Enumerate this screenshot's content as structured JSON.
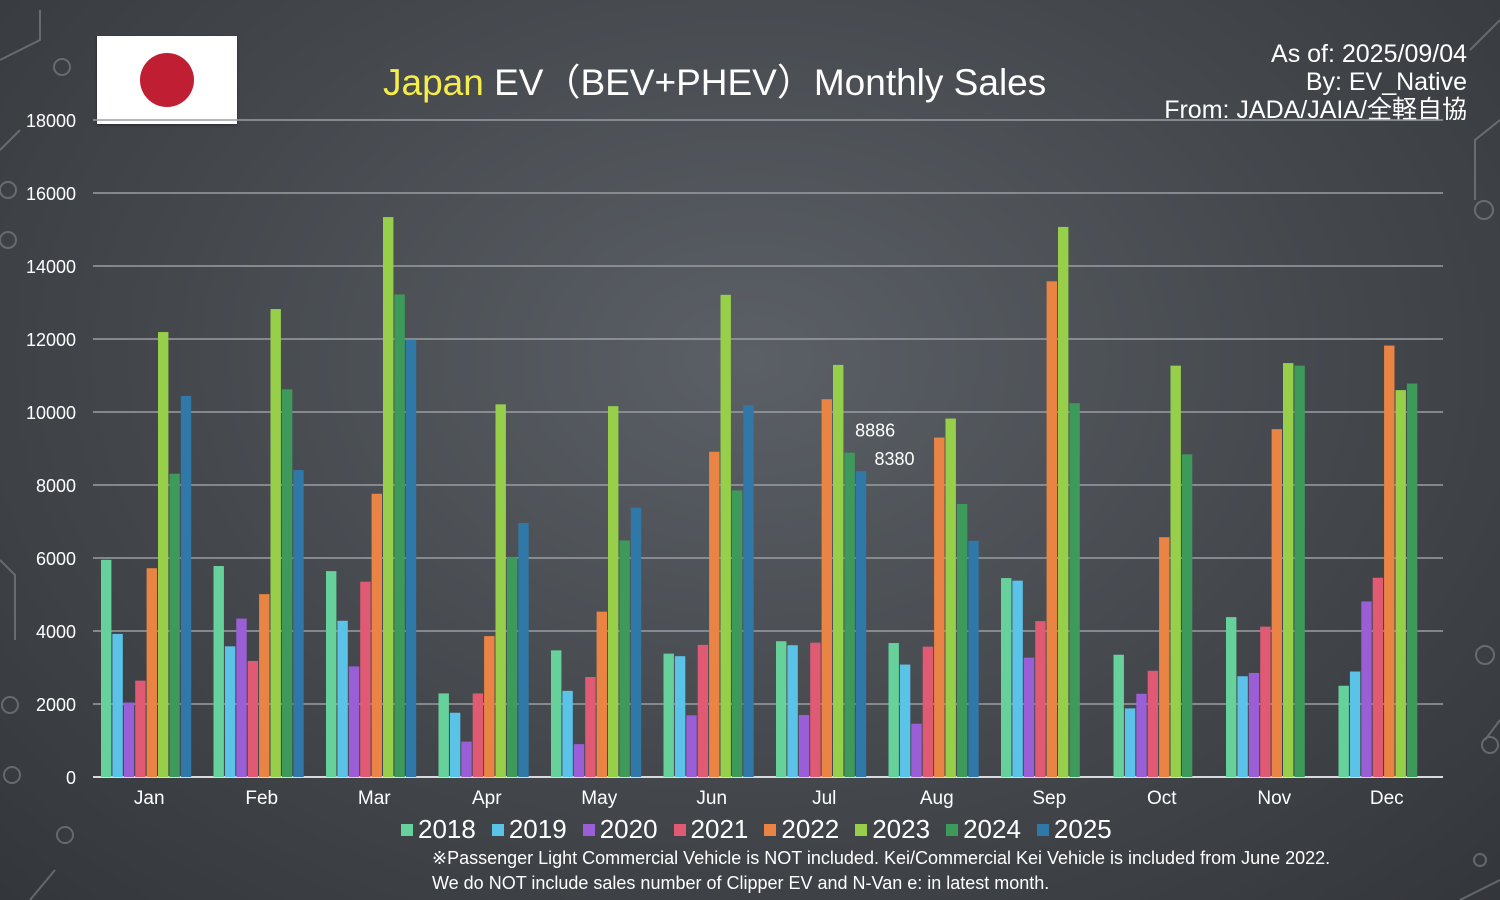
{
  "header": {
    "title_highlight": "Japan",
    "title_rest": " EV（BEV+PHEV）Monthly Sales",
    "as_of": "As of: 2025/09/04",
    "by": "By: EV_Native",
    "from": "From: JADA/JAIA/全軽自協"
  },
  "notes": [
    "※Passenger Light Commercial Vehicle is NOT included. Kei/Commercial Kei Vehicle is included from June 2022.",
    "We do NOT include sales number of Clipper EV and N-Van e: in latest month."
  ],
  "colors": {
    "grid": "#9a9ea3",
    "axis": "#d8dadc",
    "flag_red": "#c01f33",
    "title_highlight": "#f6ec4a"
  },
  "chart_data": {
    "type": "bar",
    "title": "Japan EV（BEV+PHEV）Monthly Sales",
    "categories": [
      "Jan",
      "Feb",
      "Mar",
      "Apr",
      "May",
      "Jun",
      "Jul",
      "Aug",
      "Sep",
      "Oct",
      "Nov",
      "Dec"
    ],
    "ylim": [
      0,
      18000
    ],
    "yticks": [
      0,
      2000,
      4000,
      6000,
      8000,
      10000,
      12000,
      14000,
      16000,
      18000
    ],
    "grid": true,
    "legend_position": "bottom",
    "series": [
      {
        "name": "2018",
        "color": "#66d19a",
        "values": [
          5950,
          5780,
          5640,
          2290,
          3470,
          3380,
          3720,
          3670,
          5450,
          3350,
          4380,
          2500
        ]
      },
      {
        "name": "2019",
        "color": "#5bc3e8",
        "values": [
          3920,
          3580,
          4280,
          1760,
          2360,
          3310,
          3610,
          3080,
          5380,
          1880,
          2760,
          2890
        ]
      },
      {
        "name": "2020",
        "color": "#9a5fd6",
        "values": [
          2040,
          4340,
          3030,
          970,
          900,
          1690,
          1700,
          1460,
          3270,
          2280,
          2850,
          4810
        ]
      },
      {
        "name": "2021",
        "color": "#e05a73",
        "values": [
          2640,
          3180,
          5350,
          2290,
          2740,
          3620,
          3680,
          3570,
          4270,
          2910,
          4120,
          5460
        ]
      },
      {
        "name": "2022",
        "color": "#ea8445",
        "values": [
          5720,
          5010,
          7760,
          3860,
          4530,
          8910,
          10350,
          9300,
          13580,
          6570,
          9530,
          11820
        ]
      },
      {
        "name": "2023",
        "color": "#97cf4a",
        "values": [
          12190,
          12820,
          15340,
          10210,
          10160,
          13210,
          11290,
          9820,
          15070,
          11270,
          11340,
          10600
        ]
      },
      {
        "name": "2024",
        "color": "#3e9a5a",
        "values": [
          8310,
          10620,
          13220,
          6030,
          6480,
          7850,
          8886,
          7480,
          10240,
          8840,
          11270,
          10780
        ]
      },
      {
        "name": "2025",
        "color": "#2f78a8",
        "values": [
          10440,
          8410,
          11980,
          6960,
          7380,
          10190,
          8380,
          6470,
          null,
          null,
          null,
          null
        ]
      }
    ],
    "data_labels": [
      {
        "series": "2024",
        "category": "Jul",
        "text": "8886"
      },
      {
        "series": "2025",
        "category": "Jul",
        "text": "8380"
      }
    ]
  }
}
